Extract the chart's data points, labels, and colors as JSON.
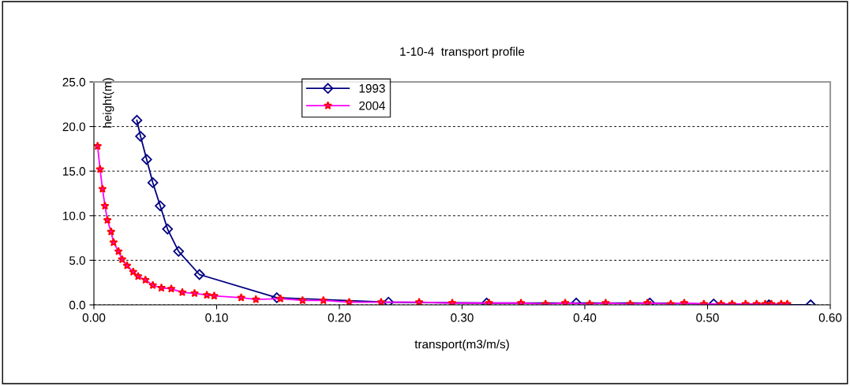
{
  "chart_data": {
    "type": "line",
    "title": "1-10-4  transport profile",
    "xlabel": "transport(m3/m/s)",
    "ylabel": "height(m)",
    "xlim": [
      0,
      0.6
    ],
    "xticks": [
      {
        "value": 0,
        "label": "0.00"
      },
      {
        "value": 0.1,
        "label": "0.10"
      },
      {
        "value": 0.2,
        "label": "0.20"
      },
      {
        "value": 0.3,
        "label": "0.30"
      },
      {
        "value": 0.4,
        "label": "0.40"
      },
      {
        "value": 0.5,
        "label": "0.50"
      },
      {
        "value": 0.6,
        "label": "0.60"
      }
    ],
    "ylim": [
      0,
      25
    ],
    "yticks": [
      {
        "value": 0,
        "label": "0.0"
      },
      {
        "value": 5,
        "label": "5.0"
      },
      {
        "value": 10,
        "label": "10.0"
      },
      {
        "value": 15,
        "label": "15.0"
      },
      {
        "value": 20,
        "label": "20.0"
      },
      {
        "value": 25,
        "label": "25.0"
      }
    ],
    "grid": "y",
    "legend": "top",
    "line_style": "solid",
    "series": [
      {
        "name": "1993",
        "color": "#000080",
        "marker": "diamond",
        "x": [
          0.035,
          0.038,
          0.043,
          0.048,
          0.054,
          0.06,
          0.069,
          0.086,
          0.149,
          0.24,
          0.32,
          0.393,
          0.453,
          0.505,
          0.55,
          0.584
        ],
        "values": [
          20.7,
          18.9,
          16.3,
          13.7,
          11.1,
          8.5,
          6.0,
          3.4,
          0.8,
          0.3,
          0.2,
          0.2,
          0.2,
          0.1,
          0.0,
          0.0
        ]
      },
      {
        "name": "2004",
        "color": "#ff00ff",
        "marker": "star",
        "x": [
          0.003,
          0.005,
          0.007,
          0.009,
          0.011,
          0.014,
          0.016,
          0.02,
          0.023,
          0.027,
          0.032,
          0.036,
          0.042,
          0.048,
          0.055,
          0.063,
          0.072,
          0.082,
          0.092,
          0.098,
          0.12,
          0.132,
          0.152,
          0.17,
          0.187,
          0.208,
          0.234,
          0.265,
          0.292,
          0.322,
          0.348,
          0.368,
          0.384,
          0.404,
          0.417,
          0.437,
          0.451,
          0.47,
          0.481,
          0.497,
          0.511,
          0.52,
          0.531,
          0.54,
          0.547,
          0.552,
          0.56,
          0.565
        ],
        "values": [
          17.8,
          15.2,
          13.0,
          11.1,
          9.5,
          8.2,
          7.0,
          6.0,
          5.1,
          4.4,
          3.7,
          3.2,
          2.8,
          2.2,
          1.9,
          1.8,
          1.4,
          1.3,
          1.1,
          1.0,
          0.8,
          0.6,
          0.7,
          0.5,
          0.5,
          0.3,
          0.3,
          0.3,
          0.2,
          0.2,
          0.2,
          0.1,
          0.2,
          0.1,
          0.2,
          0.1,
          0.2,
          0.1,
          0.2,
          0.1,
          0.1,
          0.1,
          0.1,
          0.1,
          0.1,
          0.1,
          0.1,
          0.1
        ]
      }
    ]
  }
}
